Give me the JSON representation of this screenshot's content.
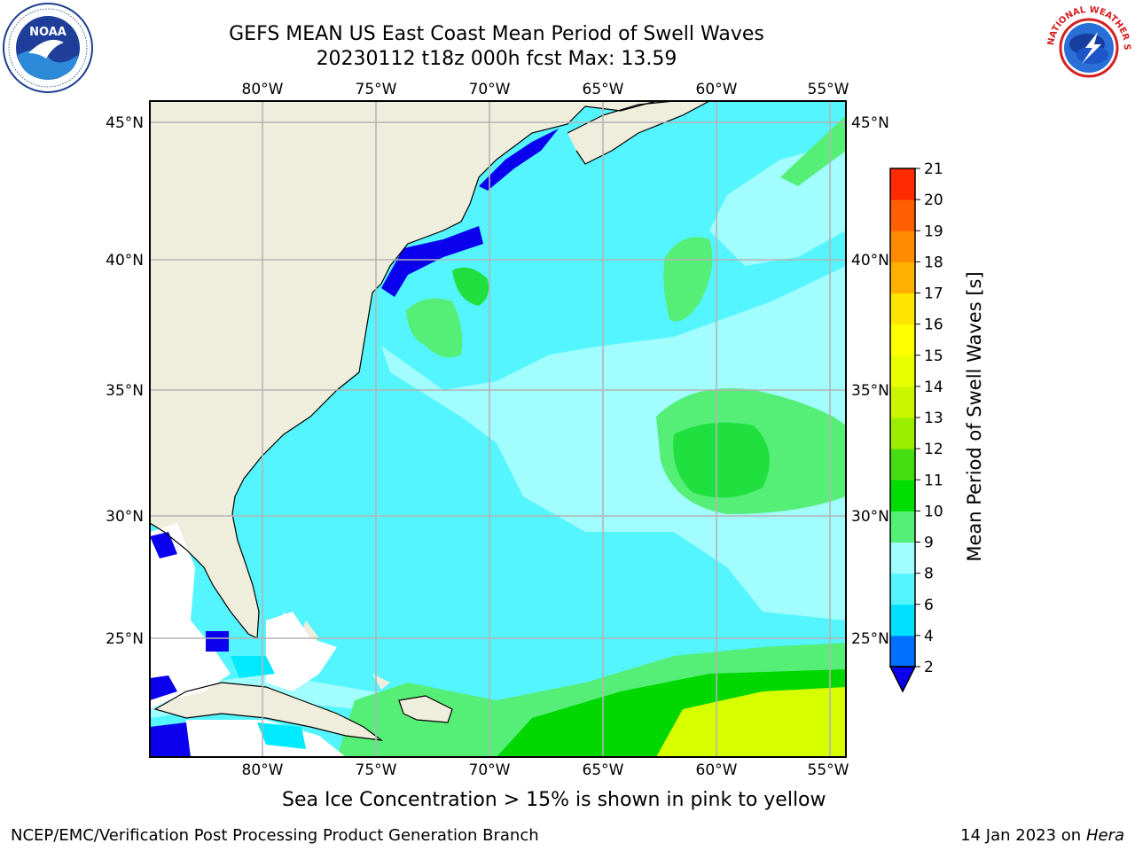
{
  "header": {
    "title": "GEFS MEAN US East Coast Mean Period of Swell Waves",
    "subtitle": "20230112 t18z 000h fcst   Max: 13.59"
  },
  "map": {
    "lon_labels": [
      "80°W",
      "75°W",
      "70°W",
      "65°W",
      "60°W",
      "55°W"
    ],
    "lat_labels": [
      "45°N",
      "40°N",
      "35°N",
      "30°N",
      "25°N"
    ],
    "colors": {
      "land": "#efeedd",
      "ocean_main": "#55f5ff",
      "ocean_light": "#a2fdff",
      "green_light": "#55ee77",
      "green_mid": "#20e040",
      "green_dark": "#00d800",
      "yellow_green": "#d8ff00",
      "blue": "#0a00ee",
      "cyan": "#00eaff",
      "grid": "#b4b4b4"
    }
  },
  "colorbar": {
    "label": "Mean Period of Swell Waves [s]",
    "ticks": [
      "2",
      "4",
      "6",
      "8",
      "9",
      "10",
      "11",
      "12",
      "13",
      "14",
      "15",
      "16",
      "17",
      "18",
      "19",
      "20",
      "21"
    ],
    "colors": [
      "#0070ff",
      "#00e0ff",
      "#55f5ff",
      "#a2fdff",
      "#55ee77",
      "#00dd00",
      "#44dd11",
      "#99ee00",
      "#ccf500",
      "#e8ff00",
      "#ffff00",
      "#ffe600",
      "#ffb000",
      "#ff8c00",
      "#ff5f00",
      "#ff2a00",
      "#ff0000"
    ],
    "extend_color": "#0a00ee"
  },
  "notes": {
    "sea_ice": "Sea Ice Concentration > 15% is shown in pink to yellow"
  },
  "footer": {
    "org": "NCEP/EMC/Verification Post Processing Product Generation Branch",
    "date": "14 Jan 2023 on ",
    "machine": "Hera"
  },
  "logos": {
    "left_text": "NOAA",
    "right_text": "NATIONAL WEATHER SERVICE"
  }
}
